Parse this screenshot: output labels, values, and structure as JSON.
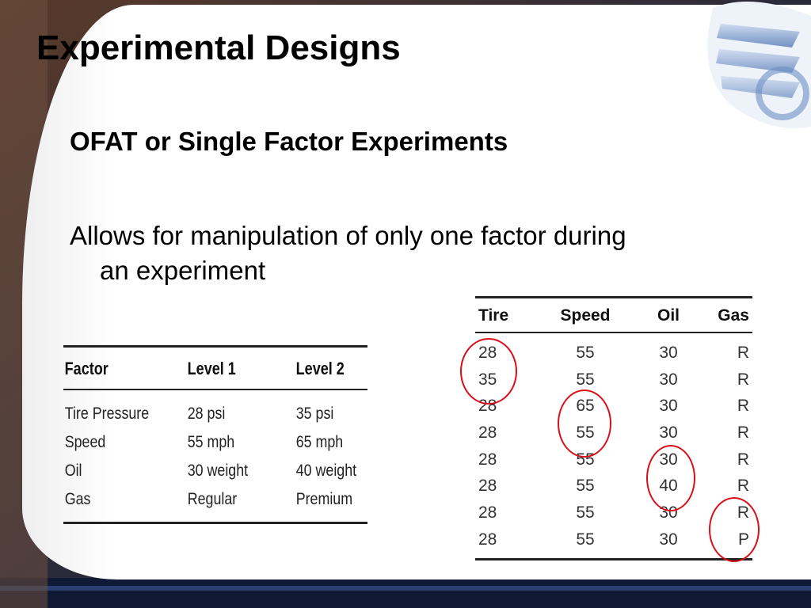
{
  "slide": {
    "title": "Experimental Designs",
    "subtitle": "OFAT or Single Factor Experiments",
    "body_line1": "Allows for manipulation of only one factor during",
    "body_line2": "an experiment"
  },
  "factor_table": {
    "headers": [
      "Factor",
      "Level 1",
      "Level 2"
    ],
    "rows": [
      [
        "Tire Pressure",
        "28 psi",
        "35 psi"
      ],
      [
        "Speed",
        "55 mph",
        "65 mph"
      ],
      [
        "Oil",
        "30 weight",
        "40 weight"
      ],
      [
        "Gas",
        "Regular",
        "Premium"
      ]
    ]
  },
  "run_table": {
    "headers": [
      "Tire",
      "Speed",
      "Oil",
      "Gas"
    ],
    "rows": [
      [
        "28",
        "55",
        "30",
        "R"
      ],
      [
        "35",
        "55",
        "30",
        "R"
      ],
      [
        "28",
        "65",
        "30",
        "R"
      ],
      [
        "28",
        "55",
        "30",
        "R"
      ],
      [
        "28",
        "55",
        "30",
        "R"
      ],
      [
        "28",
        "55",
        "40",
        "R"
      ],
      [
        "28",
        "55",
        "30",
        "R"
      ],
      [
        "28",
        "55",
        "30",
        "P"
      ]
    ]
  },
  "colors": {
    "highlight_circle": "#d8101a",
    "frame": "#1a2238"
  }
}
